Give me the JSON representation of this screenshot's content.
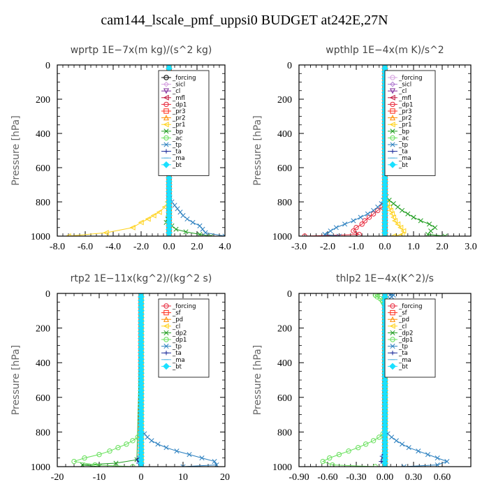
{
  "title": "cam144_lscale_pmf_uppsi0  BUDGET at242E,27N",
  "chart_data": [
    {
      "type": "line",
      "title": "wprtp  1E−7x(m kg)/(s^2 kg)",
      "ylabel": "Pressure [hPa]",
      "xlim": [
        -8,
        4
      ],
      "ylim": [
        1000,
        0
      ],
      "xticks": [
        "-8.0",
        "-6.0",
        "-4.0",
        "-2.0",
        "0.0",
        "2.0",
        "4.0"
      ],
      "yticks": [
        "0",
        "200",
        "400",
        "600",
        "800",
        "1000"
      ],
      "legend_position": "top-right",
      "series": [
        {
          "name": "_forcing",
          "color": "#000000",
          "marker": "circle",
          "y": [
            1000,
            0
          ],
          "x": [
            0,
            0
          ]
        },
        {
          "name": "_sicl",
          "color": "#d6a0e0",
          "marker": "diamond",
          "y": [
            1000,
            0
          ],
          "x": [
            0,
            0
          ]
        },
        {
          "name": "_cl",
          "color": "#7f2a9a",
          "marker": "triangle-down",
          "y": [
            1000,
            0
          ],
          "x": [
            0,
            0
          ]
        },
        {
          "name": "_mfl",
          "color": "#c0143c",
          "marker": "triangle-left",
          "y": [
            1000,
            0
          ],
          "x": [
            0,
            0
          ]
        },
        {
          "name": "_dp1",
          "color": "#e8263a",
          "marker": "circle",
          "y": [
            1000,
            0
          ],
          "x": [
            0,
            0
          ]
        },
        {
          "name": "_pr3",
          "color": "#ff2a1a",
          "marker": "square",
          "y": [
            1000,
            0
          ],
          "x": [
            0,
            0
          ]
        },
        {
          "name": "_pr2",
          "color": "#ff8c00",
          "marker": "triangle",
          "y": [
            1000,
            0
          ],
          "x": [
            0,
            0
          ]
        },
        {
          "name": "_pr1",
          "color": "#ffd21a",
          "marker": "triangle-left",
          "y": [
            1000,
            980,
            950,
            920,
            900,
            880,
            860,
            830,
            800,
            780,
            0
          ],
          "x": [
            -7.2,
            -4.5,
            -2.6,
            -2.0,
            -1.5,
            -1.1,
            -0.7,
            -0.3,
            -0.1,
            0,
            0
          ]
        },
        {
          "name": "_bp",
          "color": "#1e9c1e",
          "marker": "x",
          "y": [
            1000,
            990,
            975,
            960,
            940,
            920,
            900,
            880,
            860,
            0
          ],
          "x": [
            3.0,
            2.2,
            1.2,
            0.5,
            0.2,
            -0.2,
            -0.1,
            0,
            0,
            0
          ]
        },
        {
          "name": "_ac",
          "color": "#66e05a",
          "marker": "circle",
          "y": [
            1000,
            0
          ],
          "x": [
            0,
            0
          ]
        },
        {
          "name": "_tp",
          "color": "#2a7fbf",
          "marker": "x",
          "y": [
            1000,
            980,
            960,
            940,
            920,
            900,
            880,
            860,
            840,
            820,
            800,
            780,
            760,
            0
          ],
          "x": [
            4.0,
            2.6,
            2.4,
            2.2,
            1.7,
            1.3,
            1.0,
            0.8,
            0.6,
            0.4,
            0.2,
            0.05,
            0,
            0
          ]
        },
        {
          "name": "_ta",
          "color": "#1a2a9a",
          "marker": "plus",
          "y": [
            1000,
            0
          ],
          "x": [
            0,
            0
          ]
        },
        {
          "name": "_ma",
          "color": "#5ab4e0",
          "marker": "dash",
          "y": [
            1000,
            0
          ],
          "x": [
            0,
            0
          ]
        },
        {
          "name": "_bt",
          "color": "#1ae0ff",
          "marker": "diamond-filled",
          "y": [
            1000,
            0
          ],
          "x": [
            0,
            0
          ]
        }
      ]
    },
    {
      "type": "line",
      "title": "wpthlp  1E−4x(m K)/s^2",
      "ylabel": "Pressure [hPa]",
      "xlim": [
        -3,
        3
      ],
      "ylim": [
        1000,
        0
      ],
      "xticks": [
        "-3.0",
        "-2.0",
        "-1.0",
        "0.0",
        "1.0",
        "2.0",
        "3.0"
      ],
      "yticks": [
        "0",
        "200",
        "400",
        "600",
        "800",
        "1000"
      ],
      "legend_position": "top-right",
      "series": [
        {
          "name": "_forcing",
          "color": "#d6a0e0",
          "marker": "circle",
          "y": [
            1000,
            0
          ],
          "x": [
            0,
            0
          ]
        },
        {
          "name": "_sicl",
          "color": "#b07ad0",
          "marker": "diamond",
          "y": [
            1000,
            0
          ],
          "x": [
            0,
            0
          ]
        },
        {
          "name": "_cl",
          "color": "#7f2a9a",
          "marker": "triangle-down",
          "y": [
            1000,
            0
          ],
          "x": [
            0,
            0
          ]
        },
        {
          "name": "_mfl",
          "color": "#c0143c",
          "marker": "triangle-left",
          "y": [
            1000,
            0
          ],
          "x": [
            0,
            0
          ]
        },
        {
          "name": "_dp1",
          "color": "#e8263a",
          "marker": "circle",
          "y": [
            1000,
            990,
            970,
            950,
            930,
            910,
            890,
            870,
            850,
            830,
            810,
            790,
            0
          ],
          "x": [
            -2.8,
            -0.9,
            -1.1,
            -1.0,
            -0.8,
            -0.7,
            -0.55,
            -0.4,
            -0.25,
            -0.1,
            -0.02,
            0,
            0
          ]
        },
        {
          "name": "_pr3",
          "color": "#ff2a1a",
          "marker": "square",
          "y": [
            1000,
            0
          ],
          "x": [
            0,
            0
          ]
        },
        {
          "name": "_pr2",
          "color": "#ff8c00",
          "marker": "triangle",
          "y": [
            1000,
            0
          ],
          "x": [
            0,
            0
          ]
        },
        {
          "name": "_pr1",
          "color": "#ffd21a",
          "marker": "triangle-left",
          "y": [
            1000,
            990,
            970,
            950,
            930,
            910,
            890,
            870,
            850,
            830,
            810,
            790,
            0,
            0
          ],
          "x": [
            0.3,
            0.6,
            0.65,
            0.55,
            0.45,
            0.35,
            0.3,
            0.25,
            0.2,
            0.15,
            0.08,
            0,
            0,
            0
          ]
        },
        {
          "name": "_bp",
          "color": "#1e9c1e",
          "marker": "x",
          "y": [
            1000,
            990,
            970,
            950,
            930,
            910,
            890,
            870,
            850,
            830,
            810,
            790,
            770,
            750,
            0
          ],
          "x": [
            2.1,
            1.5,
            1.6,
            1.75,
            1.55,
            1.25,
            1.0,
            0.8,
            0.6,
            0.45,
            0.3,
            0.15,
            0.05,
            0,
            0
          ]
        },
        {
          "name": "_ac",
          "color": "#66e05a",
          "marker": "circle",
          "y": [
            1000,
            0
          ],
          "x": [
            0,
            0
          ]
        },
        {
          "name": "_tp",
          "color": "#2a7fbf",
          "marker": "x",
          "y": [
            1000,
            990,
            970,
            950,
            930,
            910,
            890,
            870,
            850,
            830,
            810,
            790,
            770,
            0
          ],
          "x": [
            -1.6,
            -2.1,
            -1.9,
            -1.7,
            -1.4,
            -1.1,
            -0.85,
            -0.6,
            -0.4,
            -0.25,
            -0.12,
            -0.05,
            0,
            0
          ]
        },
        {
          "name": "_ta",
          "color": "#1a2a9a",
          "marker": "plus",
          "y": [
            1000,
            0
          ],
          "x": [
            0,
            0
          ]
        },
        {
          "name": "_ma",
          "color": "#5ab4e0",
          "marker": "dash",
          "y": [
            1000,
            0
          ],
          "x": [
            0,
            0
          ]
        },
        {
          "name": "_bt",
          "color": "#1ae0ff",
          "marker": "diamond-filled",
          "y": [
            1000,
            0
          ],
          "x": [
            0,
            0
          ]
        }
      ]
    },
    {
      "type": "line",
      "title": "rtp2  1E−11x(kg^2)/(kg^2 s)",
      "ylabel": "Pressure [hPa]",
      "xlim": [
        -20,
        20
      ],
      "ylim": [
        1000,
        0
      ],
      "xticks": [
        "-20",
        "-10",
        "0",
        "10",
        "20"
      ],
      "yticks": [
        "0",
        "200",
        "400",
        "600",
        "800",
        "1000"
      ],
      "legend_position": "top-right",
      "series": [
        {
          "name": "_forcing",
          "color": "#e8263a",
          "marker": "circle",
          "y": [
            1000,
            0
          ],
          "x": [
            0,
            0
          ]
        },
        {
          "name": "_sf",
          "color": "#ff2a1a",
          "marker": "square",
          "y": [
            1000,
            0
          ],
          "x": [
            0,
            0
          ]
        },
        {
          "name": "_pd",
          "color": "#ff8c00",
          "marker": "triangle",
          "y": [
            1000,
            0
          ],
          "x": [
            0,
            0
          ]
        },
        {
          "name": "_cl",
          "color": "#ffd21a",
          "marker": "triangle-left",
          "y": [
            1000,
            0
          ],
          "x": [
            0,
            0
          ]
        },
        {
          "name": "_dp2",
          "color": "#1e9c1e",
          "marker": "x",
          "y": [
            1000,
            990,
            980,
            960,
            0
          ],
          "x": [
            -10,
            -14,
            -6,
            -1,
            0
          ]
        },
        {
          "name": "_dp1",
          "color": "#66e05a",
          "marker": "circle",
          "y": [
            1000,
            990,
            970,
            950,
            930,
            910,
            890,
            870,
            850,
            830,
            810,
            0
          ],
          "x": [
            -2,
            -11,
            -16,
            -13.5,
            -10,
            -7.5,
            -5.5,
            -3.5,
            -2,
            -0.8,
            0,
            0
          ]
        },
        {
          "name": "_tp",
          "color": "#2a7fbf",
          "marker": "x",
          "y": [
            1000,
            990,
            970,
            950,
            930,
            910,
            890,
            870,
            850,
            830,
            810,
            790,
            0
          ],
          "x": [
            10,
            18,
            17.5,
            14.5,
            11.5,
            8.5,
            6,
            4,
            2.5,
            1.5,
            0.8,
            0,
            0
          ]
        },
        {
          "name": "_ta",
          "color": "#1a2a9a",
          "marker": "plus",
          "y": [
            1000,
            980,
            960,
            940,
            900,
            0
          ],
          "x": [
            0.5,
            -0.6,
            -0.9,
            -0.4,
            0,
            0
          ]
        },
        {
          "name": "_ma",
          "color": "#5ab4e0",
          "marker": "dash",
          "y": [
            1000,
            0
          ],
          "x": [
            0,
            0
          ]
        },
        {
          "name": "_bt",
          "color": "#1ae0ff",
          "marker": "diamond-filled",
          "y": [
            1000,
            0
          ],
          "x": [
            0,
            0
          ]
        }
      ]
    },
    {
      "type": "line",
      "title": "thlp2  1E−4x(K^2)/s",
      "ylabel": "Pressure [hPa]",
      "xlim": [
        -0.9,
        0.9
      ],
      "ylim": [
        1000,
        0
      ],
      "xticks": [
        "-0.90",
        "-0.60",
        "-0.30",
        "0.00",
        "0.30",
        "0.60"
      ],
      "yticks": [
        "0",
        "200",
        "400",
        "600",
        "800",
        "1000"
      ],
      "legend_position": "top-right",
      "series": [
        {
          "name": "_forcing",
          "color": "#e8263a",
          "marker": "circle",
          "y": [
            1000,
            0
          ],
          "x": [
            0,
            0
          ]
        },
        {
          "name": "_sf",
          "color": "#ff2a1a",
          "marker": "square",
          "y": [
            1000,
            0
          ],
          "x": [
            0,
            0
          ]
        },
        {
          "name": "_pd",
          "color": "#ff8c00",
          "marker": "triangle",
          "y": [
            1000,
            0
          ],
          "x": [
            0,
            0
          ]
        },
        {
          "name": "_cl",
          "color": "#ffd21a",
          "marker": "triangle-left",
          "y": [
            1000,
            0
          ],
          "x": [
            0,
            0
          ]
        },
        {
          "name": "_dp2",
          "color": "#1e9c1e",
          "marker": "x",
          "y": [
            1000,
            0
          ],
          "x": [
            0,
            0
          ]
        },
        {
          "name": "_dp1",
          "color": "#66e05a",
          "marker": "circle",
          "y": [
            1000,
            990,
            970,
            950,
            930,
            910,
            890,
            870,
            850,
            830,
            810,
            790,
            0,
            5,
            10,
            20,
            30,
            40,
            50,
            60,
            80,
            100
          ],
          "x": [
            -0.1,
            -0.55,
            -0.65,
            -0.58,
            -0.48,
            -0.38,
            -0.28,
            -0.2,
            -0.12,
            -0.06,
            -0.02,
            0,
            0,
            -0.08,
            -0.1,
            -0.08,
            -0.05,
            -0.03,
            -0.02,
            -0.01,
            0,
            0
          ]
        },
        {
          "name": "_tp",
          "color": "#2a7fbf",
          "marker": "x",
          "y": [
            1000,
            990,
            970,
            950,
            930,
            910,
            890,
            870,
            850,
            830,
            810,
            790,
            0,
            5,
            10,
            20,
            30,
            50,
            80
          ],
          "x": [
            0.2,
            0.55,
            0.65,
            0.55,
            0.45,
            0.35,
            0.25,
            0.18,
            0.12,
            0.07,
            0.03,
            0,
            0,
            0.06,
            0.09,
            0.07,
            0.05,
            0.02,
            0
          ]
        },
        {
          "name": "_ta",
          "color": "#1a2a9a",
          "marker": "plus",
          "y": [
            1000,
            970,
            940,
            900,
            0
          ],
          "x": [
            0.02,
            -0.04,
            -0.03,
            0,
            0
          ]
        },
        {
          "name": "_ma",
          "color": "#5ab4e0",
          "marker": "dash",
          "y": [
            1000,
            0
          ],
          "x": [
            0,
            0
          ]
        },
        {
          "name": "_bt",
          "color": "#1ae0ff",
          "marker": "diamond-filled",
          "y": [
            1000,
            0
          ],
          "x": [
            0,
            0
          ]
        }
      ]
    }
  ]
}
